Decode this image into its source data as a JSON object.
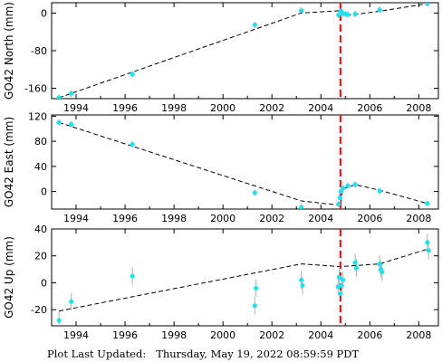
{
  "chart_data": [
    {
      "type": "scatter",
      "ylabel": "GO42 North (mm)",
      "xlim": [
        1993.0,
        2008.8
      ],
      "ylim": [
        -182,
        22
      ],
      "xticks": [
        "1994",
        "1996",
        "1998",
        "2000",
        "2002",
        "2004",
        "2006",
        "2008"
      ],
      "yticks": [
        "0",
        "-80",
        "-160"
      ],
      "event_line_x": 2004.8,
      "series": [
        {
          "points": [
            [
              1993.3,
              -180
            ],
            [
              1993.8,
              -171
            ],
            [
              1996.3,
              -130
            ],
            [
              2001.3,
              -25
            ],
            [
              2003.2,
              5
            ],
            [
              2004.72,
              -4
            ],
            [
              2004.82,
              5
            ],
            [
              2004.9,
              -1
            ],
            [
              2005.0,
              -2
            ],
            [
              2005.1,
              -3
            ],
            [
              2005.4,
              -2
            ],
            [
              2006.4,
              7
            ],
            [
              2008.35,
              20
            ]
          ]
        }
      ],
      "model_line": [
        [
          1993.3,
          -180
        ],
        [
          2003.2,
          0
        ],
        [
          2004.8,
          5
        ],
        [
          2004.95,
          -5
        ],
        [
          2005.4,
          -3
        ],
        [
          2006.4,
          4
        ],
        [
          2008.35,
          20
        ]
      ]
    },
    {
      "type": "scatter",
      "ylabel": "GO42 East (mm)",
      "xlim": [
        1993.0,
        2008.8
      ],
      "ylim": [
        -28,
        122
      ],
      "xticks": [
        "1994",
        "1996",
        "1998",
        "2000",
        "2002",
        "2004",
        "2006",
        "2008"
      ],
      "yticks": [
        "120",
        "80",
        "40",
        "0"
      ],
      "event_line_x": 2004.8,
      "series": [
        {
          "points": [
            [
              1993.3,
              110
            ],
            [
              1993.8,
              107
            ],
            [
              1996.3,
              75
            ],
            [
              2001.3,
              -2
            ],
            [
              2003.2,
              -25
            ],
            [
              2004.72,
              -20
            ],
            [
              2004.78,
              -10
            ],
            [
              2004.82,
              0
            ],
            [
              2004.9,
              5
            ],
            [
              2005.1,
              9
            ],
            [
              2005.4,
              11
            ],
            [
              2006.4,
              1
            ],
            [
              2008.35,
              -19
            ]
          ]
        }
      ],
      "model_line": [
        [
          1993.3,
          110
        ],
        [
          2003.2,
          -15
        ],
        [
          2004.8,
          -22
        ],
        [
          2004.9,
          4
        ],
        [
          2005.4,
          11
        ],
        [
          2006.4,
          2
        ],
        [
          2008.35,
          -19
        ]
      ]
    },
    {
      "type": "scatter",
      "ylabel": "GO42 Up (mm)",
      "xlim": [
        1993.0,
        2008.8
      ],
      "ylim": [
        -32,
        40
      ],
      "xticks": [
        "1994",
        "1996",
        "1998",
        "2000",
        "2002",
        "2004",
        "2006",
        "2008"
      ],
      "yticks": [
        "40",
        "20",
        "0",
        "-20"
      ],
      "event_line_x": 2004.8,
      "series": [
        {
          "points": [
            [
              1993.3,
              -28
            ],
            [
              1993.8,
              -14
            ],
            [
              1996.3,
              5
            ],
            [
              2001.3,
              -17
            ],
            [
              2001.35,
              -4
            ],
            [
              2003.2,
              2
            ],
            [
              2003.25,
              -2
            ],
            [
              2004.7,
              -3
            ],
            [
              2004.75,
              4
            ],
            [
              2004.8,
              -8
            ],
            [
              2004.85,
              -2
            ],
            [
              2004.9,
              2
            ],
            [
              2005.4,
              15
            ],
            [
              2005.45,
              11
            ],
            [
              2006.4,
              14
            ],
            [
              2006.45,
              10
            ],
            [
              2006.5,
              8
            ],
            [
              2008.35,
              30
            ],
            [
              2008.4,
              24
            ]
          ]
        }
      ],
      "model_line": [
        [
          1993.3,
          -21
        ],
        [
          2003.2,
          14
        ],
        [
          2004.8,
          12
        ],
        [
          2006.4,
          14
        ],
        [
          2008.35,
          25
        ]
      ]
    }
  ],
  "footer": {
    "label": "Plot Last Updated:",
    "timestamp": "Thursday, May 19, 2022 08:59:59 PDT"
  }
}
